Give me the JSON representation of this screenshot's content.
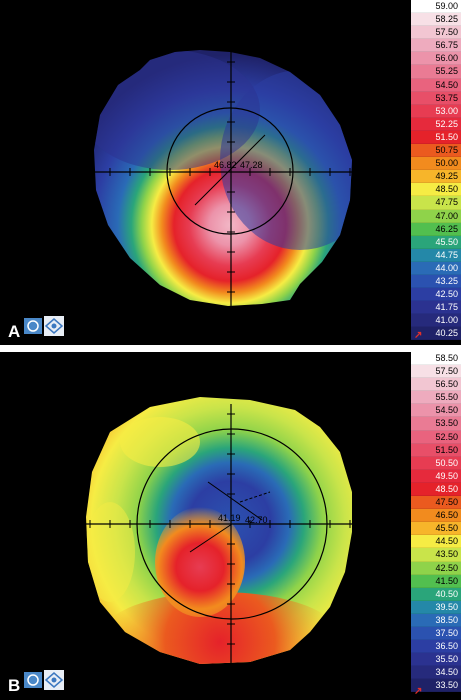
{
  "panels": [
    {
      "label": "A",
      "center_readout": [
        "46.82",
        "47.28"
      ],
      "scale": [
        {
          "v": "59.00",
          "c": "#ffffff"
        },
        {
          "v": "58.25",
          "c": "#f7e0e6"
        },
        {
          "v": "57.50",
          "c": "#f2c6d2"
        },
        {
          "v": "56.75",
          "c": "#eeabbe"
        },
        {
          "v": "56.00",
          "c": "#ec93aa"
        },
        {
          "v": "55.25",
          "c": "#ea7b94"
        },
        {
          "v": "54.50",
          "c": "#e9637e"
        },
        {
          "v": "53.75",
          "c": "#e84f68"
        },
        {
          "v": "53.00",
          "c": "#e73c52"
        },
        {
          "v": "52.25",
          "c": "#e62a3c"
        },
        {
          "v": "51.50",
          "c": "#e5222a"
        },
        {
          "v": "50.75",
          "c": "#eb5a1f"
        },
        {
          "v": "50.00",
          "c": "#f28b1e"
        },
        {
          "v": "49.25",
          "c": "#f7b52a"
        },
        {
          "v": "48.50",
          "c": "#f6ec44"
        },
        {
          "v": "47.75",
          "c": "#c9e44a"
        },
        {
          "v": "47.00",
          "c": "#8fd34a"
        },
        {
          "v": "46.25",
          "c": "#52bf4f"
        },
        {
          "v": "45.50",
          "c": "#2aa57a"
        },
        {
          "v": "44.75",
          "c": "#2488a8"
        },
        {
          "v": "44.00",
          "c": "#2a6bb6"
        },
        {
          "v": "43.25",
          "c": "#2b52b0"
        },
        {
          "v": "42.50",
          "c": "#2c3ea3"
        },
        {
          "v": "41.75",
          "c": "#2b3290"
        },
        {
          "v": "41.00",
          "c": "#262a7c"
        },
        {
          "v": "40.25",
          "c": "#1f2268"
        }
      ]
    },
    {
      "label": "B",
      "center_readout": [
        "41.19",
        "42.70"
      ],
      "scale": [
        {
          "v": "58.50",
          "c": "#ffffff"
        },
        {
          "v": "57.50",
          "c": "#f7e0e6"
        },
        {
          "v": "56.50",
          "c": "#f2c6d2"
        },
        {
          "v": "55.50",
          "c": "#eeabbe"
        },
        {
          "v": "54.50",
          "c": "#ec93aa"
        },
        {
          "v": "53.50",
          "c": "#ea7b94"
        },
        {
          "v": "52.50",
          "c": "#e9637e"
        },
        {
          "v": "51.50",
          "c": "#e84f68"
        },
        {
          "v": "50.50",
          "c": "#e73c52"
        },
        {
          "v": "49.50",
          "c": "#e62a3c"
        },
        {
          "v": "48.50",
          "c": "#e5222a"
        },
        {
          "v": "47.50",
          "c": "#eb5a1f"
        },
        {
          "v": "46.50",
          "c": "#f28b1e"
        },
        {
          "v": "45.50",
          "c": "#f7b52a"
        },
        {
          "v": "44.50",
          "c": "#f6ec44"
        },
        {
          "v": "43.50",
          "c": "#c9e44a"
        },
        {
          "v": "42.50",
          "c": "#8fd34a"
        },
        {
          "v": "41.50",
          "c": "#52bf4f"
        },
        {
          "v": "40.50",
          "c": "#2aa57a"
        },
        {
          "v": "39.50",
          "c": "#2488a8"
        },
        {
          "v": "38.50",
          "c": "#2a6bb6"
        },
        {
          "v": "37.50",
          "c": "#2b52b0"
        },
        {
          "v": "36.50",
          "c": "#2c3ea3"
        },
        {
          "v": "35.50",
          "c": "#2b3290"
        },
        {
          "v": "34.50",
          "c": "#262a7c"
        },
        {
          "v": "33.50",
          "c": "#1f2268"
        }
      ]
    }
  ]
}
